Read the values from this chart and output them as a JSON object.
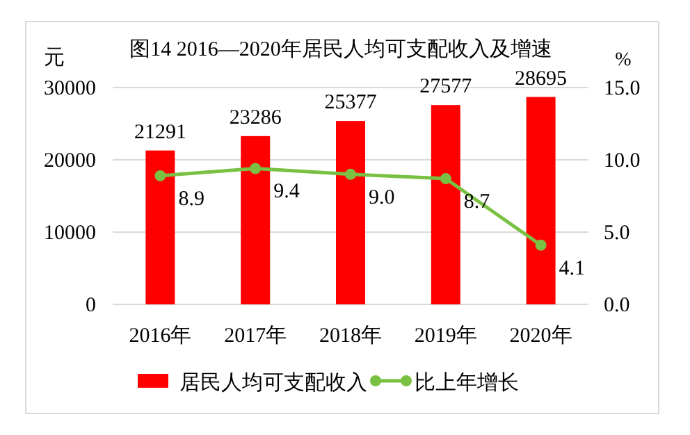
{
  "chart_data": {
    "type": "bar",
    "title": "图14  2016—2020年居民人均可支配收入及增速",
    "ylabel": "元",
    "y2label": "%",
    "categories": [
      "2016年",
      "2017年",
      "2018年",
      "2019年",
      "2020年"
    ],
    "series": [
      {
        "name": "居民人均可支配收入",
        "color": "#ff0000",
        "values": [
          21291,
          23286,
          25377,
          27577,
          28695
        ],
        "value_labels": [
          "21291",
          "23286",
          "25377",
          "27577",
          "28695"
        ]
      },
      {
        "name": "比上年增长",
        "type": "line",
        "axis": "y2",
        "marker": "circle",
        "color": "#7ac143",
        "values": [
          8.9,
          9.4,
          9.0,
          8.7,
          4.1
        ],
        "value_labels": [
          "8.9",
          "9.4",
          "9.0",
          "8.7",
          "4.1"
        ]
      }
    ],
    "ylim": [
      0,
      30000
    ],
    "yticks": [
      0,
      10000,
      20000,
      30000
    ],
    "y2lim": [
      0,
      15
    ],
    "y2ticks": [
      {
        "value": 0,
        "label": "0.0"
      },
      {
        "value": 5,
        "label": "5.0"
      },
      {
        "value": 10,
        "label": "10.0"
      },
      {
        "value": 15,
        "label": "15.0"
      }
    ],
    "grid": "y",
    "legend": "bottom"
  }
}
